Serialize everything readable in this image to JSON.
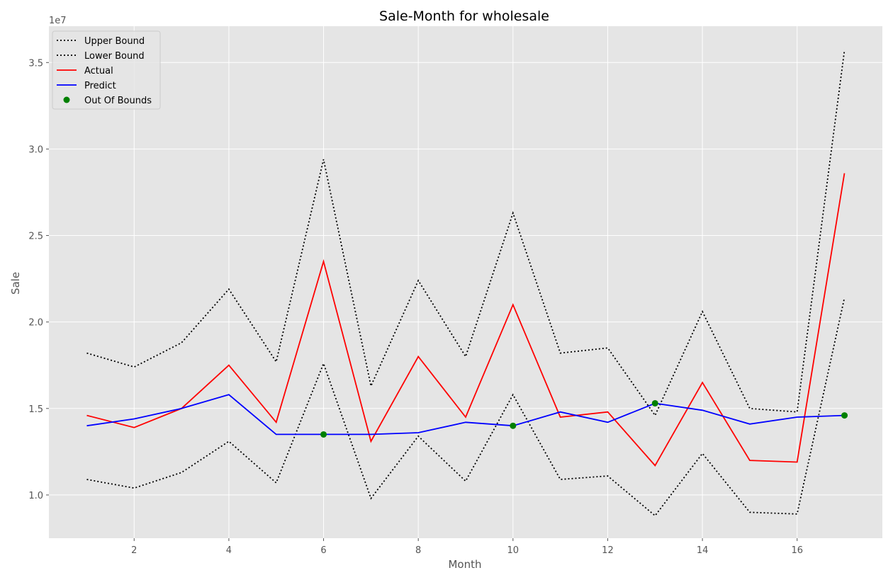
{
  "chart_data": {
    "type": "line",
    "title": "Sale-Month for wholesale",
    "xlabel": "Month",
    "ylabel": "Sale",
    "y_scale_label": "1e7",
    "xlim": [
      0.2,
      17.8
    ],
    "ylim": [
      0.75,
      3.71
    ],
    "x_ticks": [
      2,
      4,
      6,
      8,
      10,
      12,
      14,
      16
    ],
    "y_ticks": [
      1.0,
      1.5,
      2.0,
      2.5,
      3.0,
      3.5
    ],
    "y_tick_labels": [
      "1.0",
      "1.5",
      "2.0",
      "2.5",
      "3.0",
      "3.5"
    ],
    "x": [
      1,
      2,
      3,
      4,
      5,
      6,
      7,
      8,
      9,
      10,
      11,
      12,
      13,
      14,
      15,
      16,
      17
    ],
    "grid": true,
    "legend_position": "top-left",
    "series": [
      {
        "name": "Upper Bound",
        "style": "dotted",
        "color": "#000000",
        "values": [
          1.82,
          1.74,
          1.88,
          2.19,
          1.77,
          2.94,
          1.63,
          2.24,
          1.8,
          2.63,
          1.82,
          1.85,
          1.46,
          2.06,
          1.5,
          1.48,
          3.57
        ]
      },
      {
        "name": "Lower Bound",
        "style": "dotted",
        "color": "#000000",
        "values": [
          1.09,
          1.04,
          1.13,
          1.31,
          1.07,
          1.76,
          0.98,
          1.34,
          1.08,
          1.58,
          1.09,
          1.11,
          0.88,
          1.24,
          0.9,
          0.89,
          2.14
        ]
      },
      {
        "name": "Actual",
        "style": "solid",
        "color": "#ff0000",
        "values": [
          1.46,
          1.39,
          1.5,
          1.75,
          1.42,
          2.35,
          1.31,
          1.8,
          1.45,
          2.1,
          1.45,
          1.48,
          1.17,
          1.65,
          1.2,
          1.19,
          2.86
        ]
      },
      {
        "name": "Predict",
        "style": "solid",
        "color": "#0000ff",
        "values": [
          1.4,
          1.44,
          1.5,
          1.58,
          1.35,
          1.35,
          1.35,
          1.36,
          1.42,
          1.4,
          1.48,
          1.42,
          1.53,
          1.49,
          1.41,
          1.45,
          1.46
        ]
      }
    ],
    "out_of_bounds": {
      "name": "Out Of Bounds",
      "color": "#008000",
      "points": [
        {
          "x": 6,
          "y": 1.35
        },
        {
          "x": 10,
          "y": 1.4
        },
        {
          "x": 13,
          "y": 1.53
        },
        {
          "x": 17,
          "y": 1.46
        }
      ]
    },
    "colors": {
      "plot_background": "#e5e5e5",
      "grid": "#ffffff",
      "text": "#555555"
    }
  }
}
